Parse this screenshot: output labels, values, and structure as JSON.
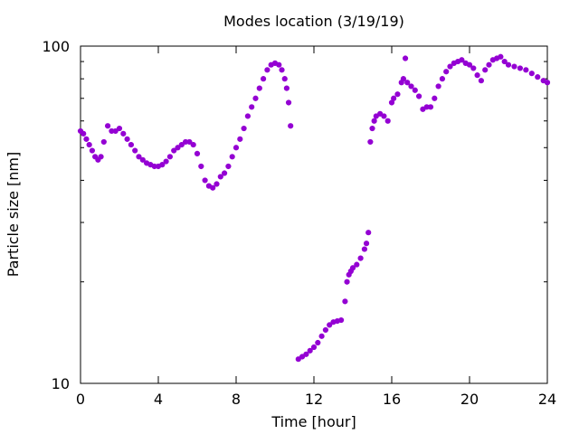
{
  "chart_data": {
    "type": "scatter",
    "title": "Modes location (3/19/19)",
    "xlabel": "Time [hour]",
    "ylabel": "Particle size [nm]",
    "xlim": [
      0,
      24
    ],
    "ylim": [
      10,
      100
    ],
    "yscale": "log",
    "grid": false,
    "legend": "none",
    "marker_color": "#9400d3",
    "x_ticks": [
      {
        "value": 0,
        "label": "0"
      },
      {
        "value": 4,
        "label": "4"
      },
      {
        "value": 8,
        "label": "8"
      },
      {
        "value": 12,
        "label": "12"
      },
      {
        "value": 16,
        "label": "16"
      },
      {
        "value": 20,
        "label": "20"
      },
      {
        "value": 24,
        "label": "24"
      }
    ],
    "y_ticks": [
      {
        "value": 10,
        "label": "10"
      },
      {
        "value": 100,
        "label": "100"
      }
    ],
    "series": [
      {
        "x": [
          0,
          0.15,
          0.3,
          0.45,
          0.6,
          0.75,
          0.9,
          1.05,
          1.2,
          1.4,
          1.6,
          1.8,
          2.0,
          2.2,
          2.4,
          2.6,
          2.8,
          3.0,
          3.2,
          3.4,
          3.6,
          3.8,
          4.0,
          4.2,
          4.4,
          4.6,
          4.8,
          5.0,
          5.2,
          5.4,
          5.6,
          5.8,
          6.0,
          6.2,
          6.4,
          6.6,
          6.8,
          7.0,
          7.2,
          7.4,
          7.6,
          7.8,
          8.0,
          8.2,
          8.4,
          8.6,
          8.8,
          9.0,
          9.2,
          9.4,
          9.6,
          9.8,
          10.0,
          10.2,
          10.35,
          10.5,
          10.6,
          10.7,
          10.8
        ],
        "y": [
          56,
          55,
          53,
          51,
          49,
          47,
          46,
          47,
          52,
          58,
          56,
          56,
          57,
          55,
          53,
          51,
          49,
          47,
          46,
          45,
          44.5,
          44,
          44,
          44.5,
          45.5,
          47,
          49,
          50,
          51,
          52,
          52,
          51,
          48,
          44,
          40,
          38.5,
          38,
          39,
          41,
          42,
          44,
          47,
          50,
          53,
          57,
          62,
          66,
          70,
          75,
          80,
          85,
          88,
          89,
          88,
          85,
          80,
          75,
          68,
          58
        ]
      },
      {
        "x": [
          11.2,
          11.4,
          11.6,
          11.8,
          12.0,
          12.2,
          12.4,
          12.6,
          12.8,
          13.0,
          13.2,
          13.4,
          13.6,
          13.7,
          13.8,
          13.9,
          14.0,
          14.2,
          14.4,
          14.6,
          14.7,
          14.8,
          14.9,
          15.0,
          15.1,
          15.2,
          15.4,
          15.6,
          15.8,
          16.0,
          16.1,
          16.3,
          16.5,
          16.6,
          16.7,
          16.8,
          17.0,
          17.2,
          17.4,
          17.6,
          17.8,
          18.0,
          18.2,
          18.4,
          18.6,
          18.8,
          19.0,
          19.2,
          19.4,
          19.6,
          19.8,
          20.0,
          20.2,
          20.4,
          20.6,
          20.8,
          21.0,
          21.2,
          21.4,
          21.6,
          21.8,
          22.0,
          22.3,
          22.6,
          22.9,
          23.2,
          23.5,
          23.8,
          24.0
        ],
        "y": [
          11.8,
          12.0,
          12.2,
          12.5,
          12.8,
          13.2,
          13.8,
          14.4,
          14.9,
          15.2,
          15.3,
          15.4,
          17.5,
          20,
          21,
          21.5,
          22,
          22.5,
          23.5,
          25,
          26,
          28,
          52,
          57,
          60,
          62,
          63,
          62,
          60,
          68,
          70,
          72,
          78,
          80,
          92,
          78,
          76,
          74,
          71,
          65,
          66,
          66,
          70,
          76,
          80,
          84,
          87,
          89,
          90,
          91,
          89,
          88,
          86,
          82,
          79,
          85,
          88,
          91,
          92,
          93,
          90,
          88,
          87,
          86,
          85,
          83,
          81,
          79,
          78
        ]
      }
    ]
  }
}
